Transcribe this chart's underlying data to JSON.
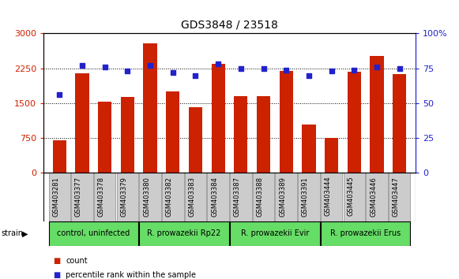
{
  "title": "GDS3848 / 23518",
  "samples": [
    "GSM403281",
    "GSM403377",
    "GSM403378",
    "GSM403379",
    "GSM403380",
    "GSM403382",
    "GSM403383",
    "GSM403384",
    "GSM403387",
    "GSM403388",
    "GSM403389",
    "GSM403391",
    "GSM403444",
    "GSM403445",
    "GSM403446",
    "GSM403447"
  ],
  "counts": [
    700,
    2150,
    1530,
    1640,
    2780,
    1760,
    1420,
    2350,
    1650,
    1650,
    2200,
    1050,
    760,
    2180,
    2520,
    2130
  ],
  "percentiles": [
    56,
    77,
    76,
    73,
    77,
    72,
    70,
    78,
    75,
    75,
    74,
    70,
    73,
    74,
    76,
    75
  ],
  "groups": [
    {
      "label": "control, uninfected",
      "start": 0,
      "end": 3,
      "color": "#66dd66"
    },
    {
      "label": "R. prowazekii Rp22",
      "start": 4,
      "end": 7,
      "color": "#66dd66"
    },
    {
      "label": "R. prowazekii Evir",
      "start": 8,
      "end": 11,
      "color": "#66dd66"
    },
    {
      "label": "R. prowazekii Erus",
      "start": 12,
      "end": 15,
      "color": "#66dd66"
    }
  ],
  "bar_color": "#cc2200",
  "dot_color": "#2222cc",
  "left_axis_color": "#cc2200",
  "right_axis_color": "#2222cc",
  "ylim_left": [
    0,
    3000
  ],
  "ylim_right": [
    0,
    100
  ],
  "yticks_left": [
    0,
    750,
    1500,
    2250,
    3000
  ],
  "ytick_labels_left": [
    "0",
    "750",
    "1500",
    "2250",
    "3000"
  ],
  "yticks_right": [
    0,
    25,
    50,
    75,
    100
  ],
  "ytick_labels_right": [
    "0",
    "25",
    "50",
    "75",
    "100%"
  ],
  "legend_count_label": "count",
  "legend_percentile_label": "percentile rank within the sample",
  "strain_label": "strain",
  "tick_bg_color": "#cccccc",
  "title_fontsize": 10,
  "axis_fontsize": 8,
  "tick_fontsize": 6,
  "group_fontsize": 7,
  "bar_width": 0.6
}
